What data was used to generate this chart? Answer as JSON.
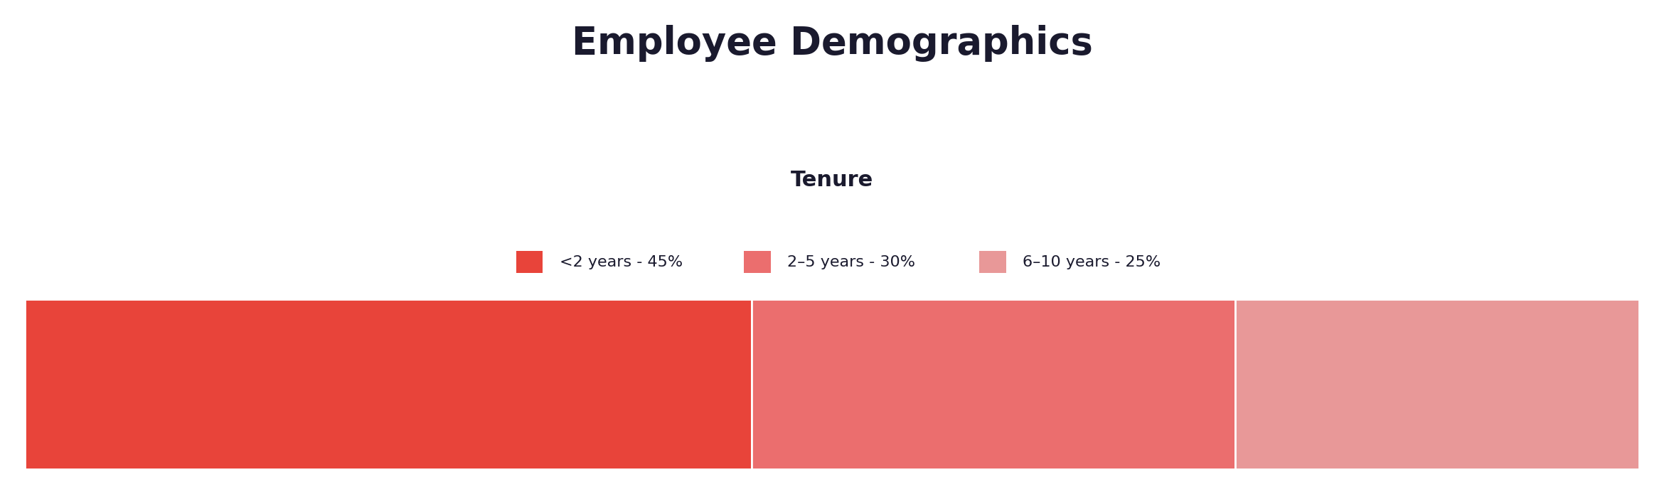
{
  "title": "Employee Demographics",
  "subtitle": "Tenure",
  "segments": [
    {
      "label": "<2 years - 45%",
      "value": 45,
      "color": "#e8443a"
    },
    {
      "label": "2–5 years - 30%",
      "value": 30,
      "color": "#eb6e6e"
    },
    {
      "label": "6–10 years - 25%",
      "value": 25,
      "color": "#e89898"
    }
  ],
  "background_color": "#ffffff",
  "title_fontsize": 38,
  "subtitle_fontsize": 22,
  "legend_fontsize": 16,
  "title_color": "#1a1a2e",
  "text_color": "#1a1a2e",
  "bar_edge_color": "#ffffff",
  "bar_linewidth": 2.0
}
